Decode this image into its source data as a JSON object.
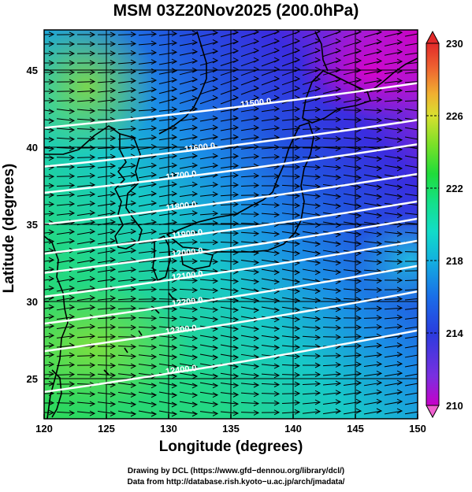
{
  "title": "MSM 03Z20Nov2025 (200.0hPa)",
  "map": {
    "lon_range": [
      120,
      150
    ],
    "lat_range": [
      22.4,
      47.6
    ],
    "x_ticks": [
      120,
      125,
      130,
      135,
      140,
      145,
      150
    ],
    "x_tick_labels": [
      "120",
      "125",
      "130",
      "135",
      "140",
      "145",
      "150"
    ],
    "y_ticks": [
      25,
      30,
      35,
      40,
      45
    ],
    "y_tick_labels": [
      "25",
      "30",
      "35",
      "40",
      "45"
    ],
    "xlabel": "Longitude (degrees)",
    "ylabel": "Latitude  (degrees)",
    "grid": true,
    "shading": "temperature",
    "vectors": "wind streamlines (arrows toward east)",
    "contour_color": "#ffffff",
    "coastline_color": "#000000"
  },
  "contours": [
    {
      "label": "11500.0",
      "label_lon": 137.0,
      "label_lat": 42.9
    },
    {
      "label": "11600.0",
      "label_lon": 132.5,
      "label_lat": 40.0
    },
    {
      "label": "11700.0",
      "label_lon": 131.0,
      "label_lat": 38.2
    },
    {
      "label": "11800.0",
      "label_lon": 131.0,
      "label_lat": 36.2
    },
    {
      "label": "11900.0",
      "label_lon": 131.5,
      "label_lat": 34.4
    },
    {
      "label": "12000.0",
      "label_lon": 131.5,
      "label_lat": 33.2
    },
    {
      "label": "12100.0",
      "label_lon": 131.5,
      "label_lat": 31.7
    },
    {
      "label": "12200.0",
      "label_lon": 131.5,
      "label_lat": 30.0
    },
    {
      "label": "12300.0",
      "label_lon": 131.0,
      "label_lat": 28.2
    },
    {
      "label": "12400.0",
      "label_lon": 131.0,
      "label_lat": 25.6
    }
  ],
  "colorbar": {
    "min": 210,
    "max": 230,
    "tick_labels": [
      "230",
      "226",
      "222",
      "218",
      "214",
      "210"
    ],
    "colors": [
      "#c800c8",
      "#7a2fe0",
      "#2a3cde",
      "#1a6ee8",
      "#13b0e0",
      "#12dcc8",
      "#14e08a",
      "#20dc3a",
      "#7ae028",
      "#d8e030",
      "#f0b030",
      "#ef6530",
      "#e22a2a"
    ]
  },
  "footer": {
    "line1": "Drawing by DCL (https://www.gfd−dennou.org/library/dcl/)",
    "line2": "Data from http://database.rish.kyoto−u.ac.jp/arch/jmadata/"
  }
}
